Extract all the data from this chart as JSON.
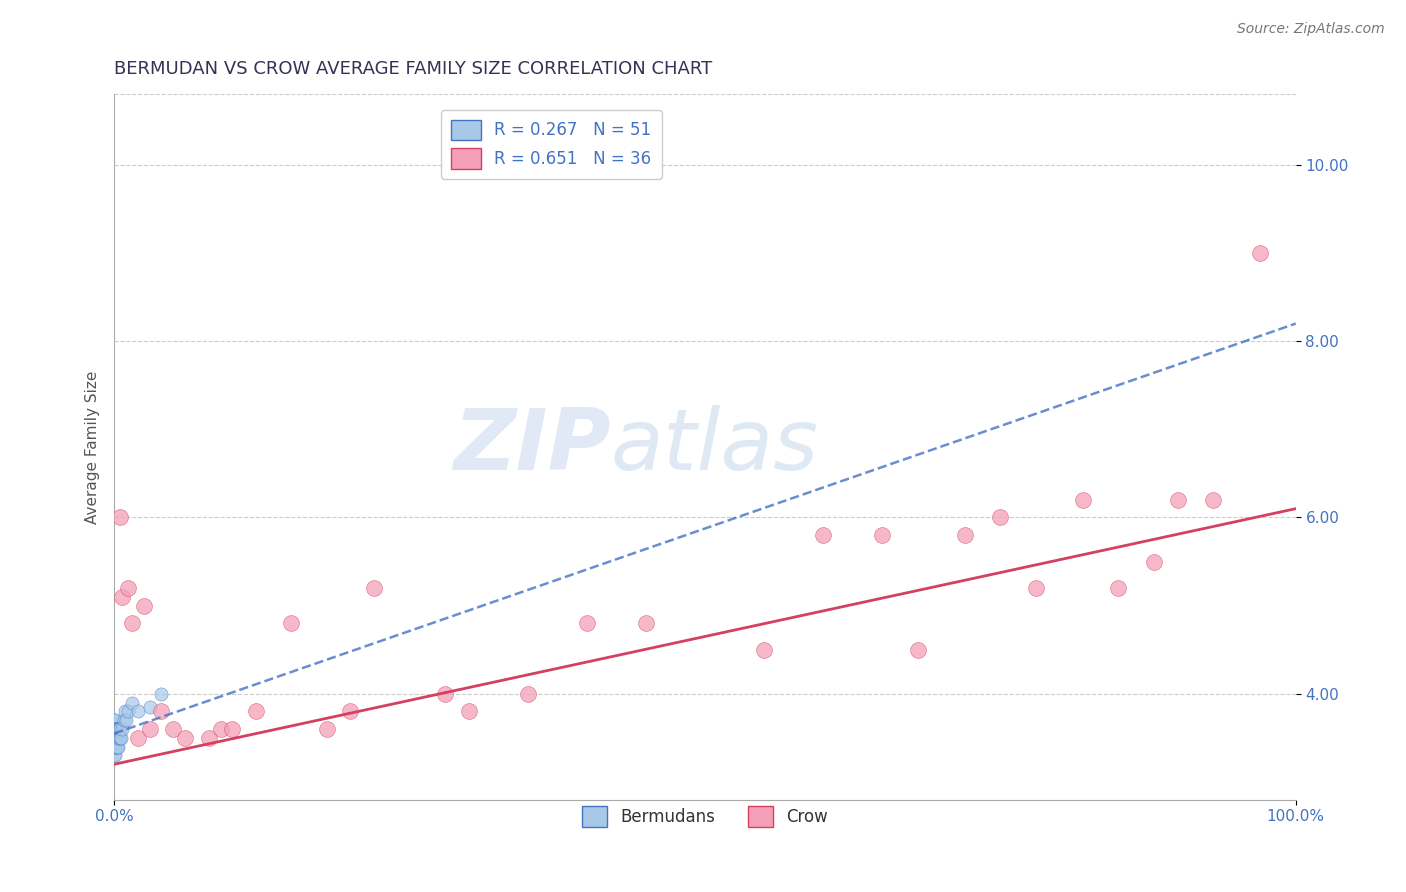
{
  "title": "BERMUDAN VS CROW AVERAGE FAMILY SIZE CORRELATION CHART",
  "source": "Source: ZipAtlas.com",
  "ylabel": "Average Family Size",
  "watermark_zip": "ZIP",
  "watermark_atlas": "atlas",
  "legend_label1": "R = 0.267   N = 51",
  "legend_label2": "R = 0.651   N = 36",
  "legend_name1": "Bermudans",
  "legend_name2": "Crow",
  "xlim": [
    0.0,
    1.0
  ],
  "ylim": [
    2.8,
    10.8
  ],
  "yticks": [
    4.0,
    6.0,
    8.0,
    10.0
  ],
  "xtick_labels": [
    "0.0%",
    "100.0%"
  ],
  "ytick_labels": [
    "4.00",
    "6.00",
    "8.00",
    "10.00"
  ],
  "color_bermudans": "#a8c8e8",
  "color_crow": "#f4a0b8",
  "trendline_bermudans": "#4472c4",
  "trendline_crow": "#d44060",
  "background": "#ffffff",
  "grid_color": "#cccccc",
  "bermudans_x": [
    0.0,
    0.0,
    0.0,
    0.0,
    0.0,
    0.0,
    0.0,
    0.0,
    0.0,
    0.0,
    0.001,
    0.001,
    0.001,
    0.001,
    0.001,
    0.001,
    0.001,
    0.001,
    0.001,
    0.001,
    0.001,
    0.001,
    0.001,
    0.001,
    0.001,
    0.002,
    0.002,
    0.002,
    0.002,
    0.002,
    0.002,
    0.002,
    0.003,
    0.003,
    0.003,
    0.003,
    0.003,
    0.004,
    0.004,
    0.005,
    0.005,
    0.006,
    0.007,
    0.008,
    0.009,
    0.01,
    0.012,
    0.015,
    0.02,
    0.03,
    0.04
  ],
  "bermudans_y": [
    3.5,
    3.6,
    3.7,
    3.4,
    3.5,
    3.6,
    3.3,
    3.5,
    3.6,
    3.4,
    3.5,
    3.6,
    3.4,
    3.5,
    3.7,
    3.5,
    3.6,
    3.4,
    3.5,
    3.6,
    3.3,
    3.5,
    3.4,
    3.5,
    3.6,
    3.5,
    3.6,
    3.4,
    3.5,
    3.6,
    3.5,
    3.4,
    3.5,
    3.6,
    3.5,
    3.4,
    3.6,
    3.5,
    3.6,
    3.5,
    3.6,
    3.5,
    3.6,
    3.7,
    3.8,
    3.7,
    3.8,
    3.9,
    3.8,
    3.85,
    4.0
  ],
  "crow_x": [
    0.005,
    0.007,
    0.012,
    0.015,
    0.02,
    0.025,
    0.03,
    0.04,
    0.05,
    0.06,
    0.08,
    0.09,
    0.1,
    0.12,
    0.15,
    0.18,
    0.2,
    0.22,
    0.28,
    0.3,
    0.35,
    0.4,
    0.45,
    0.55,
    0.6,
    0.65,
    0.68,
    0.72,
    0.75,
    0.78,
    0.82,
    0.85,
    0.88,
    0.9,
    0.93,
    0.97
  ],
  "crow_y": [
    6.0,
    5.1,
    5.2,
    4.8,
    3.5,
    5.0,
    3.6,
    3.8,
    3.6,
    3.5,
    3.5,
    3.6,
    3.6,
    3.8,
    4.8,
    3.6,
    3.8,
    5.2,
    4.0,
    3.8,
    4.0,
    4.8,
    4.8,
    4.5,
    5.8,
    5.8,
    4.5,
    5.8,
    6.0,
    5.2,
    6.2,
    5.2,
    5.5,
    6.2,
    6.2,
    9.0
  ],
  "title_fontsize": 13,
  "axis_label_fontsize": 11,
  "tick_fontsize": 11,
  "source_fontsize": 10,
  "legend_fontsize": 12
}
